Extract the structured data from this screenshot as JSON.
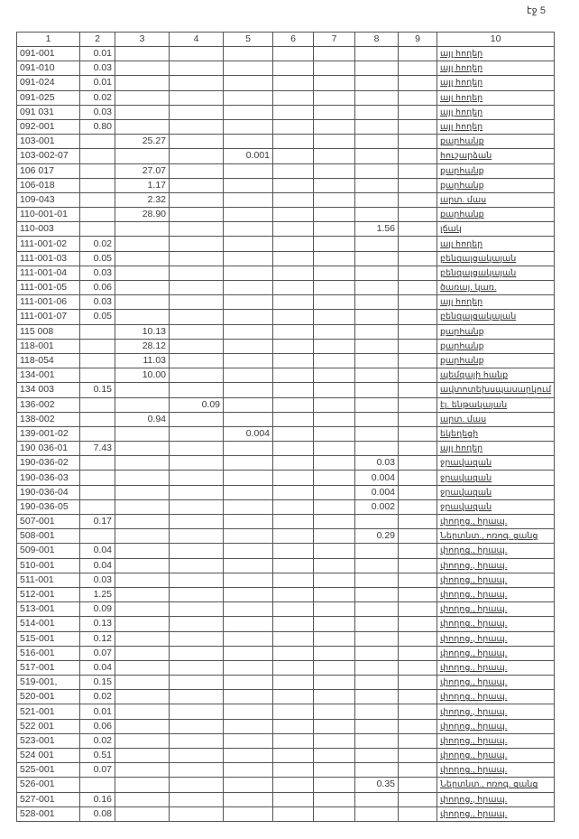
{
  "page_label": "էջ 5",
  "columns": [
    "1",
    "2",
    "3",
    "4",
    "5",
    "6",
    "7",
    "8",
    "9",
    "10"
  ],
  "rows": [
    [
      "091-001",
      "0.01",
      "",
      "",
      "",
      "",
      "",
      "",
      "",
      "այլ հողեր"
    ],
    [
      "091-010",
      "0.03",
      "",
      "",
      "",
      "",
      "",
      "",
      "",
      "այլ հողեր"
    ],
    [
      "091-024",
      "0.01",
      "",
      "",
      "",
      "",
      "",
      "",
      "",
      "այլ հողեր"
    ],
    [
      "091-025",
      "0.02",
      "",
      "",
      "",
      "",
      "",
      "",
      "",
      "այլ հողեր"
    ],
    [
      "091 031",
      "0.03",
      "",
      "",
      "",
      "",
      "",
      "",
      "",
      "այլ հողեր"
    ],
    [
      "092-001",
      "0.80",
      "",
      "",
      "",
      "",
      "",
      "",
      "",
      "այլ հողեր"
    ],
    [
      "103-001",
      "",
      "25.27",
      "",
      "",
      "",
      "",
      "",
      "",
      "քարհանք"
    ],
    [
      "103-002-07",
      "",
      "",
      "",
      "0.001",
      "",
      "",
      "",
      "",
      "հուշարձան"
    ],
    [
      "106 017",
      "",
      "27.07",
      "",
      "",
      "",
      "",
      "",
      "",
      "քարհանք"
    ],
    [
      "106-018",
      "",
      "1.17",
      "",
      "",
      "",
      "",
      "",
      "",
      "քարհանք"
    ],
    [
      "109-043",
      "",
      "2.32",
      "",
      "",
      "",
      "",
      "",
      "",
      "արտ. մաս"
    ],
    [
      "110-001-01",
      "",
      "28.90",
      "",
      "",
      "",
      "",
      "",
      "",
      "քարհանք"
    ],
    [
      "110-003",
      "",
      "",
      "",
      "",
      "",
      "",
      "1.56",
      "",
      "լճակ"
    ],
    [
      "111-001-02",
      "0.02",
      "",
      "",
      "",
      "",
      "",
      "",
      "",
      "այլ հողեր"
    ],
    [
      "111-001-03",
      "0.05",
      "",
      "",
      "",
      "",
      "",
      "",
      "",
      "բենզալցակայան"
    ],
    [
      "111-001-04",
      "0.03",
      "",
      "",
      "",
      "",
      "",
      "",
      "",
      "բենզալցակայան"
    ],
    [
      "111-001-05",
      "0.06",
      "",
      "",
      "",
      "",
      "",
      "",
      "",
      "ծառայ. կառ."
    ],
    [
      "111-001-06",
      "0.03",
      "",
      "",
      "",
      "",
      "",
      "",
      "",
      "այլ հողեր"
    ],
    [
      "111-001-07",
      "0.05",
      "",
      "",
      "",
      "",
      "",
      "",
      "",
      "բենզալցակայան"
    ],
    [
      "115 008",
      "",
      "10.13",
      "",
      "",
      "",
      "",
      "",
      "",
      "քարհանք"
    ],
    [
      "118-001",
      "",
      "28.12",
      "",
      "",
      "",
      "",
      "",
      "",
      "քարհանք"
    ],
    [
      "118-054",
      "",
      "11.03",
      "",
      "",
      "",
      "",
      "",
      "",
      "քարհանք"
    ],
    [
      "134-001",
      "",
      "10.00",
      "",
      "",
      "",
      "",
      "",
      "",
      "պեմզայի հանք"
    ],
    [
      "134 003",
      "0.15",
      "",
      "",
      "",
      "",
      "",
      "",
      "",
      "ավտոտեխսպասարկում"
    ],
    [
      "136-002",
      "",
      "",
      "0.09",
      "",
      "",
      "",
      "",
      "",
      "էլ. ենթակայան"
    ],
    [
      "138-002",
      "",
      "0.94",
      "",
      "",
      "",
      "",
      "",
      "",
      "արտ. մաս"
    ],
    [
      "139-001-02",
      "",
      "",
      "",
      "0.004",
      "",
      "",
      "",
      "",
      "եկեղեցի"
    ],
    [
      "190 036-01",
      "7.43",
      "",
      "",
      "",
      "",
      "",
      "",
      "",
      "այլ հողեր"
    ],
    [
      "190-036-02",
      "",
      "",
      "",
      "",
      "",
      "",
      "0.03",
      "",
      "ջրավազան"
    ],
    [
      "190-036-03",
      "",
      "",
      "",
      "",
      "",
      "",
      "0.004",
      "",
      "ջրավազան"
    ],
    [
      "190-036-04",
      "",
      "",
      "",
      "",
      "",
      "",
      "0.004",
      "",
      "ջրավազան"
    ],
    [
      "190-036-05",
      "",
      "",
      "",
      "",
      "",
      "",
      "0.002",
      "",
      "ջրավազան"
    ],
    [
      "507-001",
      "0.17",
      "",
      "",
      "",
      "",
      "",
      "",
      "",
      "փողոց., հրապ."
    ],
    [
      "508-001",
      "",
      "",
      "",
      "",
      "",
      "",
      "0.29",
      "",
      "Ներտնտ., ոռոգ. ցանց"
    ],
    [
      "509-001",
      "0.04",
      "",
      "",
      "",
      "",
      "",
      "",
      "",
      "փողոց., հրապ."
    ],
    [
      "510-001",
      "0.04",
      "",
      "",
      "",
      "",
      "",
      "",
      "",
      "փողոց., հրապ."
    ],
    [
      "511-001",
      "0.03",
      "",
      "",
      "",
      "",
      "",
      "",
      "",
      "փողոց., հրապ."
    ],
    [
      "512-001",
      "1.25",
      "",
      "",
      "",
      "",
      "",
      "",
      "",
      "փողոց., հրապ."
    ],
    [
      "513-001",
      "0.09",
      "",
      "",
      "",
      "",
      "",
      "",
      "",
      "փողոց., հրապ."
    ],
    [
      "514-001",
      "0.13",
      "",
      "",
      "",
      "",
      "",
      "",
      "",
      "փողոց., հրապ."
    ],
    [
      "515-001",
      "0.12",
      "",
      "",
      "",
      "",
      "",
      "",
      "",
      "փողոց., հրապ."
    ],
    [
      "516-001",
      "0.07",
      "",
      "",
      "",
      "",
      "",
      "",
      "",
      "փողոց., հրապ."
    ],
    [
      "517-001",
      "0.04",
      "",
      "",
      "",
      "",
      "",
      "",
      "",
      "փողոց., հրապ."
    ],
    [
      "519-001,",
      "0.15",
      "",
      "",
      "",
      "",
      "",
      "",
      "",
      "փողոց., հրապ."
    ],
    [
      "520-001",
      "0.02",
      "",
      "",
      "",
      "",
      "",
      "",
      "",
      "փողոց., հրապ."
    ],
    [
      "521-001",
      "0.01",
      "",
      "",
      "",
      "",
      "",
      "",
      "",
      "փողոց., հրապ."
    ],
    [
      "522 001",
      "0.06",
      "",
      "",
      "",
      "",
      "",
      "",
      "",
      "փողոց., հրապ."
    ],
    [
      "523-001",
      "0.02",
      "",
      "",
      "",
      "",
      "",
      "",
      "",
      "փողոց., հրապ."
    ],
    [
      "524 001",
      "0.51",
      "",
      "",
      "",
      "",
      "",
      "",
      "",
      "փողոց., հրապ."
    ],
    [
      "525-001",
      "0.07",
      "",
      "",
      "",
      "",
      "",
      "",
      "",
      "փողոց., հրապ."
    ],
    [
      "526-001",
      "",
      "",
      "",
      "",
      "",
      "",
      "0.35",
      "",
      "Ներտնտ., ոռոգ. ցանց"
    ],
    [
      "527-001",
      "0.16",
      "",
      "",
      "",
      "",
      "",
      "",
      "",
      "փողոց., հրապ."
    ],
    [
      "528-001",
      "0.08",
      "",
      "",
      "",
      "",
      "",
      "",
      "",
      "փողոց., հրապ."
    ]
  ]
}
